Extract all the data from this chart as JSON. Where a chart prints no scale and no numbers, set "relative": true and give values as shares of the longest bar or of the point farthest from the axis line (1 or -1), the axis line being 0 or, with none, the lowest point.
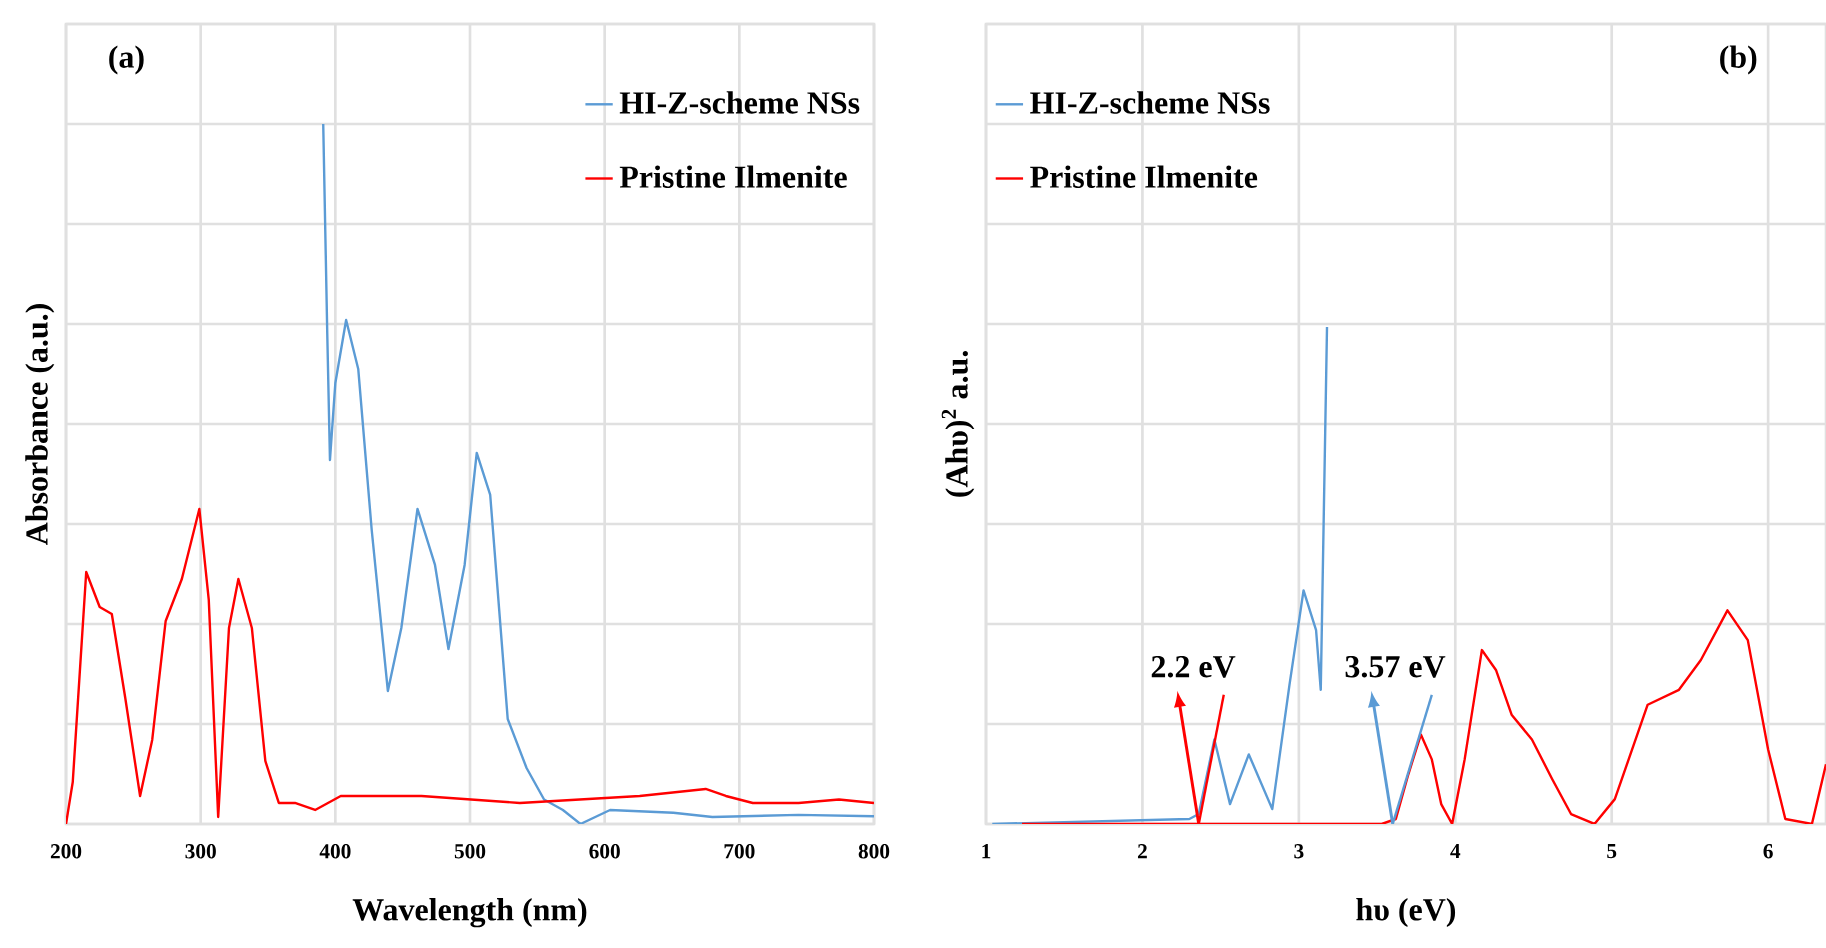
{
  "chart_data": [
    {
      "type": "line",
      "xlabel": "Wavelength (nm)",
      "ylabel": "Absorbance (a.u.)",
      "relative": true,
      "xlim": [
        200,
        800
      ],
      "xticks": [
        200,
        300,
        400,
        500,
        600,
        700,
        800
      ],
      "grid": true,
      "legend": "top right",
      "annotations": [
        "(a)"
      ],
      "series": [
        {
          "name": "HI-Z-scheme NSs",
          "color": "#5b9bd5",
          "x": [
            391,
            394,
            396,
            400,
            408,
            417,
            427,
            439,
            449,
            461,
            474,
            484,
            496,
            505,
            515,
            528,
            542,
            555,
            569,
            582,
            604,
            651,
            680,
            744,
            800
          ],
          "values": [
            1.0,
            0.7,
            0.52,
            0.63,
            0.72,
            0.65,
            0.42,
            0.19,
            0.28,
            0.45,
            0.37,
            0.25,
            0.37,
            0.53,
            0.47,
            0.15,
            0.08,
            0.035,
            0.02,
            0.0,
            0.02,
            0.016,
            0.01,
            0.013,
            0.011
          ]
        },
        {
          "name": "Pristine Ilmenite",
          "color": "#ff0000",
          "x": [
            200,
            205,
            215,
            225,
            234,
            244,
            255,
            264,
            274,
            286,
            299,
            306,
            313,
            321,
            328,
            338,
            348,
            358,
            370,
            385,
            404,
            464,
            537,
            626,
            675,
            690,
            710,
            744,
            774,
            800
          ],
          "values": [
            0.0,
            0.06,
            0.36,
            0.31,
            0.3,
            0.18,
            0.04,
            0.12,
            0.29,
            0.35,
            0.45,
            0.32,
            0.01,
            0.28,
            0.35,
            0.28,
            0.09,
            0.03,
            0.03,
            0.02,
            0.04,
            0.04,
            0.03,
            0.04,
            0.05,
            0.04,
            0.03,
            0.03,
            0.035,
            0.03
          ]
        }
      ]
    },
    {
      "type": "line",
      "xlabel": "hυ (eV)",
      "ylabel": "(Ahυ)$^{2}$ a.u.",
      "relative": true,
      "xlim": [
        1,
        6.37
      ],
      "xticks": [
        1,
        2,
        3,
        4,
        5,
        6
      ],
      "grid": true,
      "legend": "top left",
      "annotations": [
        "(b)",
        {
          "text": "2.2 eV",
          "x": 2.36,
          "y": 0
        },
        {
          "text": "3.57 eV",
          "x": 3.6,
          "y": 0
        }
      ],
      "series": [
        {
          "name": "HI-Z-scheme NSs",
          "color": "#5b9bd5",
          "x": [
            1.04,
            2.3,
            2.36,
            2.46,
            2.56,
            2.68,
            2.83,
            2.94,
            3.03,
            3.11,
            3.14,
            3.18
          ],
          "values": [
            0.0,
            0.01,
            0.02,
            0.17,
            0.04,
            0.14,
            0.03,
            0.28,
            0.47,
            0.39,
            0.27,
            1.0
          ]
        },
        {
          "name": "Pristine Ilmenite",
          "color": "#ff0000",
          "x": [
            1.23,
            3.53,
            3.62,
            3.7,
            3.78,
            3.85,
            3.91,
            3.98,
            4.06,
            4.17,
            4.26,
            4.36,
            4.49,
            4.62,
            4.74,
            4.89,
            5.02,
            5.23,
            5.43,
            5.57,
            5.74,
            5.87,
            6.0,
            6.11,
            6.28,
            6.37
          ],
          "values": [
            0.0,
            0.0,
            0.01,
            0.1,
            0.18,
            0.13,
            0.04,
            0.0,
            0.13,
            0.35,
            0.31,
            0.22,
            0.17,
            0.09,
            0.02,
            0.0,
            0.05,
            0.24,
            0.27,
            0.33,
            0.43,
            0.37,
            0.15,
            0.01,
            0.0,
            0.12
          ]
        },
        {
          "color": "#ff0000",
          "x": [
            2.36,
            2.52
          ],
          "values": [
            0.0,
            0.26
          ]
        },
        {
          "color": "#5b9bd5",
          "x": [
            3.6,
            3.85
          ],
          "values": [
            0.0,
            0.26
          ]
        }
      ]
    }
  ]
}
